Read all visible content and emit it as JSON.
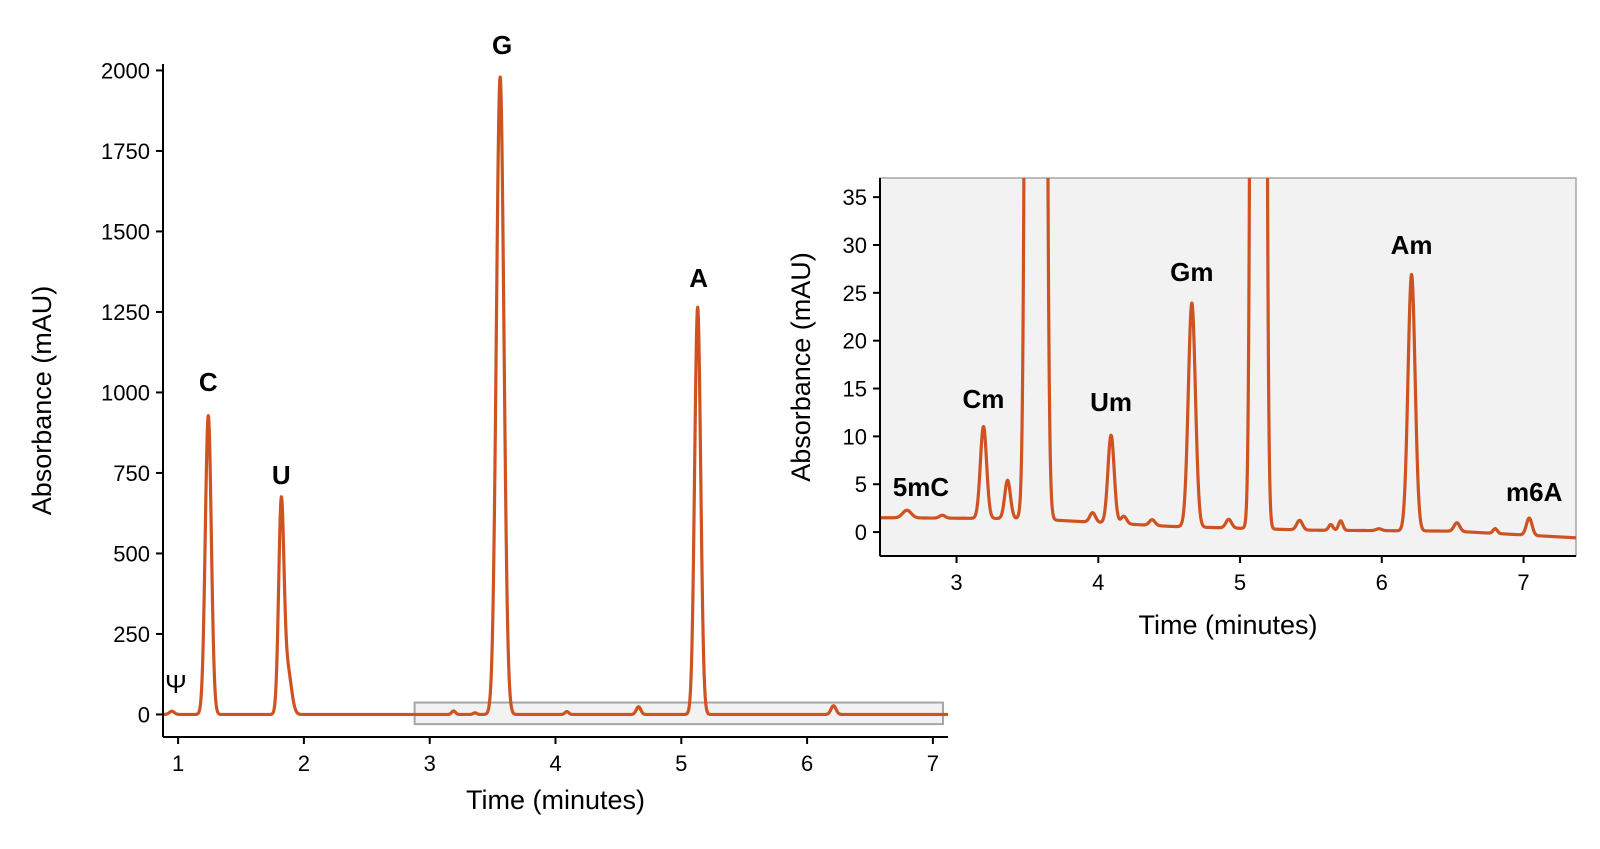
{
  "colors": {
    "trace": "#cf5321",
    "inset_background": "#f2f2f2",
    "zoom_box": "#a6a6a6",
    "axis": "#000000"
  },
  "chart_data": [
    {
      "type": "line",
      "panel": "main",
      "title": "",
      "xlabel": "Time (minutes)",
      "ylabel": "Absorbance (mAU)",
      "xlim": [
        0.88,
        7.12
      ],
      "ylim": [
        -70,
        2020
      ],
      "xticks": [
        1,
        2,
        3,
        4,
        5,
        6,
        7
      ],
      "yticks": [
        0,
        250,
        500,
        750,
        1000,
        1250,
        1500,
        1750,
        2000
      ],
      "grid": false,
      "baseline": 0,
      "peaks": [
        {
          "label": "Ψ",
          "x": 0.95,
          "height": 10,
          "width": 0.02
        },
        {
          "label": "C",
          "x": 1.24,
          "height": 928,
          "width": 0.024
        },
        {
          "label": "U",
          "x": 1.82,
          "height": 640,
          "width": 0.021
        },
        {
          "label": "",
          "x": 1.87,
          "height": 140,
          "width": 0.03
        },
        {
          "label": "",
          "x": 3.19,
          "height": 11,
          "width": 0.015
        },
        {
          "label": "",
          "x": 3.36,
          "height": 5,
          "width": 0.015
        },
        {
          "label": "G",
          "x": 3.56,
          "height": 1980,
          "width": 0.03
        },
        {
          "label": "",
          "x": 4.09,
          "height": 9,
          "width": 0.015
        },
        {
          "label": "",
          "x": 4.66,
          "height": 24,
          "width": 0.018
        },
        {
          "label": "A",
          "x": 5.13,
          "height": 1265,
          "width": 0.024
        },
        {
          "label": "",
          "x": 6.21,
          "height": 27,
          "width": 0.02
        }
      ],
      "annotations": [
        "Ψ",
        "C",
        "U",
        "G",
        "A"
      ],
      "zoom_region": {
        "x": [
          2.88,
          7.08
        ],
        "y": [
          -30,
          37
        ]
      }
    },
    {
      "type": "line",
      "panel": "inset",
      "title": "",
      "xlabel": "Time (minutes)",
      "ylabel": "Absorbance (mAU)",
      "xlim": [
        2.46,
        7.37
      ],
      "ylim": [
        -2.5,
        37
      ],
      "xticks": [
        3,
        4,
        5,
        6,
        7
      ],
      "yticks": [
        0,
        5,
        10,
        15,
        20,
        25,
        30,
        35
      ],
      "grid": false,
      "baseline": [
        [
          2.46,
          1.5
        ],
        [
          3.5,
          1.4
        ],
        [
          4.0,
          1.0
        ],
        [
          4.5,
          0.6
        ],
        [
          5.5,
          0.2
        ],
        [
          6.5,
          0.1
        ],
        [
          7.37,
          -0.6
        ]
      ],
      "peaks": [
        {
          "label": "5mC",
          "x": 2.65,
          "height": 0.8,
          "width": 0.03
        },
        {
          "label": "",
          "x": 2.9,
          "height": 0.3,
          "width": 0.02
        },
        {
          "label": "Cm",
          "x": 3.19,
          "height": 9.6,
          "width": 0.022
        },
        {
          "label": "",
          "x": 3.36,
          "height": 4.0,
          "width": 0.02
        },
        {
          "label": "",
          "x": 3.56,
          "height": 1980,
          "width": 0.03
        },
        {
          "label": "",
          "x": 3.96,
          "height": 1.0,
          "width": 0.02
        },
        {
          "label": "Um",
          "x": 4.09,
          "height": 9.2,
          "width": 0.022
        },
        {
          "label": "",
          "x": 4.18,
          "height": 0.8,
          "width": 0.02
        },
        {
          "label": "",
          "x": 4.38,
          "height": 0.6,
          "width": 0.02
        },
        {
          "label": "Gm",
          "x": 4.66,
          "height": 23.4,
          "width": 0.025
        },
        {
          "label": "",
          "x": 4.92,
          "height": 0.9,
          "width": 0.02
        },
        {
          "label": "",
          "x": 5.13,
          "height": 1265,
          "width": 0.024
        },
        {
          "label": "",
          "x": 5.42,
          "height": 1.0,
          "width": 0.02
        },
        {
          "label": "",
          "x": 5.64,
          "height": 0.6,
          "width": 0.015
        },
        {
          "label": "",
          "x": 5.71,
          "height": 1.0,
          "width": 0.015
        },
        {
          "label": "",
          "x": 5.98,
          "height": 0.2,
          "width": 0.02
        },
        {
          "label": "Am",
          "x": 6.21,
          "height": 26.8,
          "width": 0.025
        },
        {
          "label": "",
          "x": 6.53,
          "height": 0.9,
          "width": 0.02
        },
        {
          "label": "",
          "x": 6.8,
          "height": 0.5,
          "width": 0.015
        },
        {
          "label": "m6A",
          "x": 7.04,
          "height": 1.8,
          "width": 0.02
        }
      ],
      "annotations": [
        "5mC",
        "Cm",
        "Um",
        "Gm",
        "Am",
        "m6A"
      ]
    }
  ]
}
